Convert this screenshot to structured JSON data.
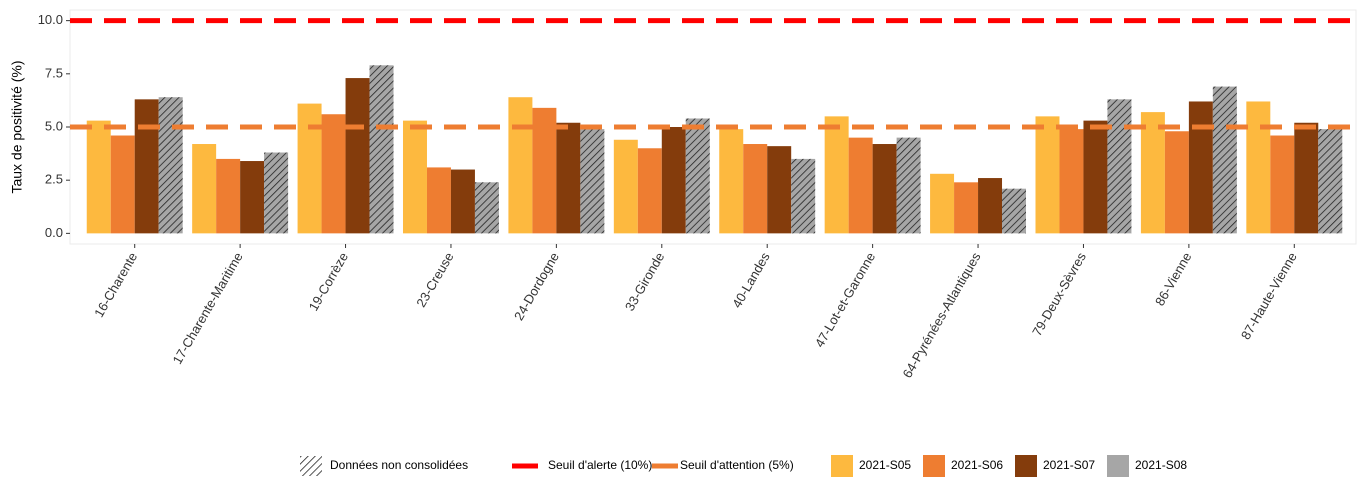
{
  "chart_data": {
    "type": "bar",
    "y_label": "Taux de positivité (%)",
    "categories": [
      "16-Charente",
      "17-Charente-Maritime",
      "19-Corrèze",
      "23-Creuse",
      "24-Dordogne",
      "33-Gironde",
      "40-Landes",
      "47-Lot-et-Garonne",
      "64-Pyrénées-Atlantiques",
      "79-Deux-Sèvres",
      "86-Vienne",
      "87-Haute-Vienne"
    ],
    "series": [
      {
        "name": "2021-S05",
        "color": "#fdb93f",
        "values": [
          5.3,
          4.2,
          6.1,
          5.3,
          6.4,
          4.4,
          4.9,
          5.5,
          2.8,
          5.5,
          5.7,
          6.2
        ]
      },
      {
        "name": "2021-S06",
        "color": "#ee7d31",
        "values": [
          4.6,
          3.5,
          5.6,
          3.1,
          5.9,
          4.0,
          4.2,
          4.5,
          2.4,
          4.9,
          4.8,
          4.6
        ]
      },
      {
        "name": "2021-S07",
        "color": "#843c0c",
        "values": [
          6.3,
          3.4,
          7.3,
          3.0,
          5.2,
          5.0,
          4.1,
          4.2,
          2.6,
          5.3,
          6.2,
          5.2
        ]
      },
      {
        "name": "2021-S08",
        "color": "#a6a6a6",
        "hatched": true,
        "values": [
          6.4,
          3.8,
          7.9,
          2.4,
          4.9,
          5.4,
          3.5,
          4.5,
          2.1,
          6.3,
          6.9,
          4.9
        ]
      }
    ],
    "hatch_label": "Données non consolidées",
    "reference_lines": [
      {
        "name": "Seuil d'alerte (10%)",
        "value": 10,
        "color": "#ff0000"
      },
      {
        "name": "Seuil d'attention (5%)",
        "value": 5,
        "color": "#ee7d31"
      }
    ],
    "ylim": [
      -0.5,
      10.5
    ],
    "yticks": [
      {
        "value": 0,
        "label": "0.0"
      },
      {
        "value": 2.5,
        "label": "2.5"
      },
      {
        "value": 5,
        "label": "5.0"
      },
      {
        "value": 7.5,
        "label": "7.5"
      },
      {
        "value": 10,
        "label": "10.0"
      }
    ]
  }
}
